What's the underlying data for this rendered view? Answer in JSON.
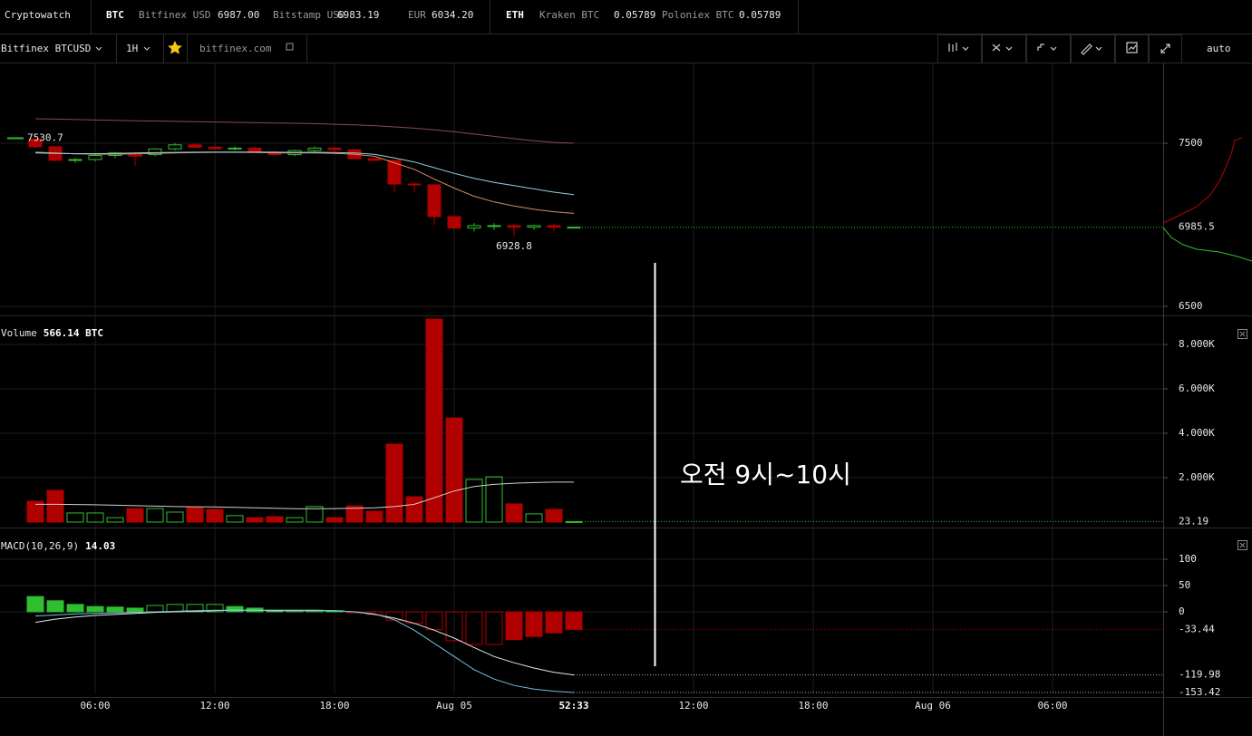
{
  "header": {
    "brand": "Cryptowatch",
    "markets": [
      {
        "asset": "BTC",
        "quotes": [
          {
            "exchange": "Bitfinex USD",
            "price": "6987.00"
          },
          {
            "exchange": "Bitstamp USD",
            "price": "6983.19"
          },
          {
            "exchange": "EUR",
            "price": "6034.20"
          }
        ]
      },
      {
        "asset": "ETH",
        "quotes": [
          {
            "exchange": "Kraken BTC",
            "price": "0.05789"
          },
          {
            "exchange": "Poloniex BTC",
            "price": "0.05789"
          }
        ]
      }
    ]
  },
  "toolbar": {
    "symbol": "Bitfinex BTCUSD",
    "interval": "1H",
    "source": "bitfinex.com",
    "scale": "auto"
  },
  "annotation": {
    "text": "오전 9시~10시"
  },
  "chart_data": [
    {
      "type": "candlestick",
      "x": [
        3,
        4,
        5,
        6,
        7,
        8,
        9,
        10,
        11,
        12,
        13,
        14,
        15,
        16,
        17,
        18,
        19,
        20,
        21,
        22,
        23,
        24,
        25,
        26,
        27,
        28,
        29,
        30
      ],
      "open": [
        7525,
        7478,
        7395,
        7400,
        7425,
        7430,
        7430,
        7465,
        7490,
        7475,
        7465,
        7470,
        7445,
        7430,
        7455,
        7470,
        7460,
        7405,
        7395,
        7250,
        7245,
        7050,
        6980,
        6990,
        6995,
        6985,
        6995,
        6985
      ],
      "high": [
        7530.7,
        7485,
        7410,
        7430,
        7445,
        7445,
        7470,
        7500,
        7500,
        7490,
        7480,
        7480,
        7455,
        7460,
        7480,
        7480,
        7470,
        7415,
        7400,
        7260,
        7250,
        7060,
        7010,
        7010,
        7005,
        7000,
        7005,
        6990
      ],
      "low": [
        7470,
        7390,
        7380,
        7390,
        7410,
        7360,
        7420,
        7455,
        7470,
        7460,
        7455,
        7440,
        7425,
        7420,
        7445,
        7450,
        7395,
        7390,
        7200,
        7200,
        7000,
        6970,
        6960,
        6970,
        6928.8,
        6970,
        6960,
        6980
      ],
      "close": [
        7478,
        7395,
        7400,
        7425,
        7440,
        7420,
        7465,
        7490,
        7475,
        7465,
        7470,
        7445,
        7430,
        7455,
        7470,
        7460,
        7405,
        7395,
        7250,
        7245,
        7050,
        6980,
        6995,
        6995,
        6985,
        6995,
        6985,
        6985.5
      ],
      "up_color": "#2fbf2f",
      "down_color": "#b00000",
      "xlim": [
        1.227,
        59.545
      ],
      "ylim": [
        6461.1,
        7988.9
      ],
      "yticks": [
        6500,
        7500
      ],
      "grid": true,
      "lines": [
        {
          "color": "#8a4a5c",
          "values": [
            7650,
            7648,
            7645,
            7642,
            7640,
            7638,
            7636,
            7634,
            7632,
            7630,
            7628,
            7626,
            7624,
            7622,
            7620,
            7616,
            7612,
            7608,
            7600,
            7592,
            7582,
            7570,
            7556,
            7542,
            7528,
            7515,
            7505,
            7500
          ]
        },
        {
          "color": "#d98c5f",
          "values": [
            7445,
            7440,
            7435,
            7433,
            7433,
            7435,
            7437,
            7440,
            7442,
            7444,
            7444,
            7443,
            7441,
            7440,
            7440,
            7438,
            7432,
            7420,
            7380,
            7340,
            7280,
            7225,
            7175,
            7140,
            7115,
            7095,
            7080,
            7070
          ]
        },
        {
          "color": "#8fd3e6",
          "values": [
            7440,
            7438,
            7436,
            7436,
            7438,
            7440,
            7442,
            7444,
            7445,
            7446,
            7446,
            7446,
            7445,
            7444,
            7444,
            7443,
            7440,
            7432,
            7410,
            7385,
            7350,
            7315,
            7285,
            7260,
            7240,
            7220,
            7200,
            7185
          ]
        }
      ]
    },
    {
      "type": "bar",
      "legend": "Volume",
      "current": "566.14 BTC",
      "values": [
        940,
        1430,
        410,
        410,
        200,
        610,
        610,
        450,
        650,
        570,
        290,
        200,
        245,
        200,
        700,
        200,
        730,
        490,
        3510,
        1140,
        9140,
        4690,
        1920,
        2040,
        820,
        370,
        570,
        23.19
      ],
      "ylim": [
        0,
        9143
      ],
      "yticks": [
        {
          "value": 2000,
          "label": "2.000K"
        },
        {
          "value": 4000,
          "label": "4.000K"
        },
        {
          "value": 6000,
          "label": "6.000K"
        },
        {
          "value": 8000,
          "label": "8.000K"
        }
      ],
      "grid": true,
      "lines": [
        {
          "color": "#cfcfcf",
          "values": [
            800,
            800,
            790,
            780,
            760,
            740,
            720,
            700,
            690,
            680,
            660,
            640,
            620,
            600,
            600,
            610,
            620,
            640,
            700,
            800,
            1100,
            1400,
            1600,
            1700,
            1750,
            1780,
            1800,
            1800
          ]
        }
      ]
    },
    {
      "type": "bar",
      "legend": "MACD(10,26,9)",
      "current": "14.03",
      "values": [
        29,
        21,
        14,
        10,
        9,
        7,
        12,
        14,
        14,
        14,
        10,
        7,
        3,
        3,
        3,
        2,
        -2,
        -5,
        -16,
        -22,
        -34,
        -55,
        -62,
        -62,
        -53,
        -47,
        -40,
        -33.44
      ],
      "ylim": [
        -155.2,
        151.7
      ],
      "yticks": [
        0,
        50,
        100
      ],
      "grid": true,
      "lines": [
        {
          "color": "#e6e6e6",
          "values": [
            -20,
            -14,
            -10,
            -7,
            -5,
            -3,
            -1,
            0,
            1,
            2,
            3,
            3,
            2,
            2,
            2,
            2,
            0,
            -5,
            -12,
            -22,
            -35,
            -50,
            -68,
            -85,
            -97,
            -107,
            -115,
            -119.98
          ]
        },
        {
          "color": "#6cc7dc",
          "values": [
            -8,
            -6,
            -4,
            -3,
            -2,
            -1,
            0,
            1,
            2,
            3,
            3,
            3,
            3,
            3,
            3,
            2,
            0,
            -4,
            -15,
            -35,
            -60,
            -85,
            -110,
            -128,
            -140,
            -147,
            -151,
            -153.42
          ]
        }
      ],
      "xticks": [
        {
          "value": 6,
          "label": "06:00"
        },
        {
          "value": 12,
          "label": "12:00"
        },
        {
          "value": 18,
          "label": "18:00"
        },
        {
          "value": 24,
          "label": "Aug 05"
        },
        {
          "value": 36,
          "label": "12:00"
        },
        {
          "value": 42,
          "label": "18:00"
        },
        {
          "value": 48,
          "label": "Aug 06"
        },
        {
          "value": 54,
          "label": "06:00"
        }
      ],
      "countdown": "52:33"
    }
  ]
}
